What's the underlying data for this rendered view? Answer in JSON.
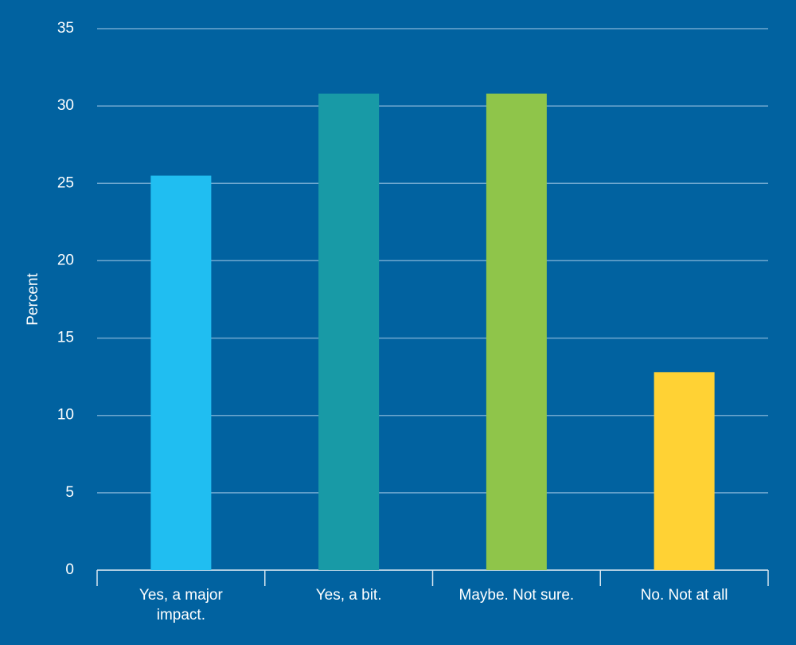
{
  "chart_data": {
    "type": "bar",
    "y_label": "Percent",
    "categories": [
      "Yes, a major impact.",
      "Yes, a bit.",
      "Maybe. Not sure.",
      "No. Not at all"
    ],
    "values": [
      25.5,
      30.8,
      30.8,
      12.8
    ],
    "colors": [
      "#20bef1",
      "#189aa6",
      "#8fc54a",
      "#ffd234"
    ],
    "ylim": [
      0,
      35
    ],
    "yticks": [
      0,
      5,
      10,
      15,
      20,
      25,
      30,
      35
    ],
    "grid": true
  }
}
